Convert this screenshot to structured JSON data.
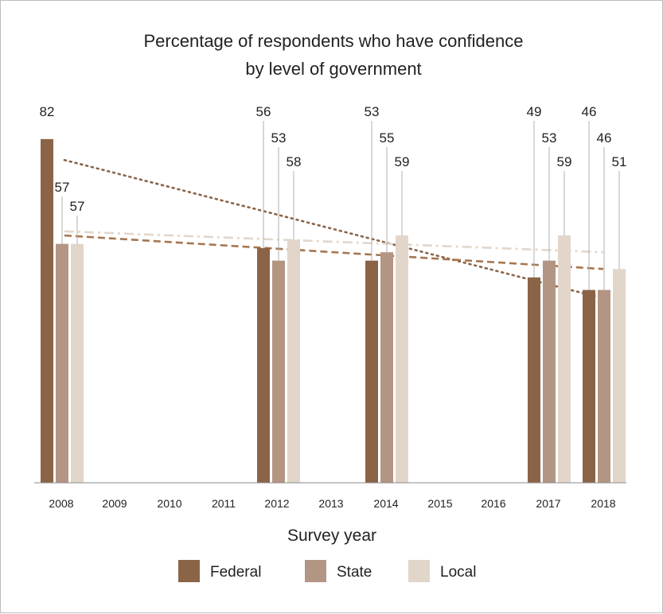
{
  "chart_data": {
    "type": "bar",
    "title_line1": "Percentage of respondents who have confidence",
    "title_line2": "by level of government",
    "xlabel": "Survey year",
    "ylabel": "",
    "x_ticks": [
      "2008",
      "2009",
      "2010",
      "2011",
      "2012",
      "2013",
      "2014",
      "2015",
      "2016",
      "2017",
      "2018"
    ],
    "categories": [
      "2008",
      "2012",
      "2014",
      "2017",
      "2018"
    ],
    "series": [
      {
        "name": "Federal",
        "color": "#8b6448",
        "values": [
          82,
          56,
          53,
          49,
          46
        ]
      },
      {
        "name": "State",
        "color": "#b39584",
        "values": [
          57,
          53,
          55,
          53,
          46
        ]
      },
      {
        "name": "Local",
        "color": "#e2d6cb",
        "values": [
          57,
          58,
          59,
          59,
          51
        ]
      }
    ],
    "trendlines": [
      {
        "series": "Federal",
        "style": "dotted",
        "color": "#8b6448",
        "start": 77,
        "end": 44
      },
      {
        "series": "State",
        "style": "dashed",
        "color": "#a57650",
        "start": 59,
        "end": 51
      },
      {
        "series": "Local",
        "style": "dash-dot",
        "color": "#e2d6cb",
        "start": 60,
        "end": 55
      }
    ],
    "ylim": [
      0,
      100
    ],
    "grid": false,
    "legend_position": "bottom"
  }
}
